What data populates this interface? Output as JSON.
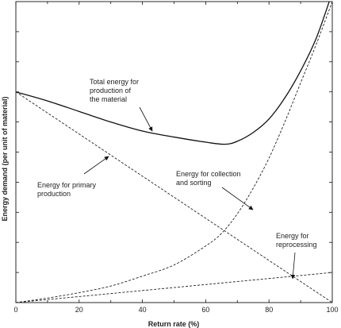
{
  "chart_data": {
    "type": "line",
    "title": "",
    "xlabel": "Return rate (%)",
    "ylabel": "Energy demand (per unit of material)",
    "xlim": [
      0,
      100
    ],
    "ylim": [
      0,
      100
    ],
    "x_ticks": [
      "0",
      "20",
      "40",
      "60",
      "80",
      "100"
    ],
    "y_ticks_labeled": false,
    "grid": false,
    "legend": "none",
    "series": [
      {
        "name": "Total energy for production of the material",
        "style": "solid",
        "x": [
          0,
          10,
          20,
          30,
          40,
          50,
          60,
          66,
          70,
          75,
          80,
          85,
          90,
          95,
          100
        ],
        "y": [
          70,
          67,
          63.5,
          60,
          57,
          55,
          53.3,
          52.6,
          53.6,
          56.5,
          61,
          68,
          77,
          88,
          103
        ]
      },
      {
        "name": "Energy for primary production",
        "style": "dashed",
        "x": [
          0,
          100
        ],
        "y": [
          70,
          0
        ]
      },
      {
        "name": "Energy for collection and sorting",
        "style": "dashed",
        "x": [
          0,
          10,
          20,
          30,
          40,
          50,
          60,
          65,
          70,
          75,
          80,
          85,
          90,
          95,
          100
        ],
        "y": [
          0,
          1.5,
          3.3,
          5.5,
          8.8,
          12.5,
          18.8,
          23,
          29.5,
          38,
          48,
          60,
          73,
          86,
          100
        ]
      },
      {
        "name": "Energy for reprocessing",
        "style": "dashed",
        "x": [
          0,
          100
        ],
        "y": [
          0,
          10
        ]
      }
    ],
    "annotations": [
      {
        "lines": [
          "Total energy for",
          "production of",
          "the material"
        ]
      },
      {
        "lines": [
          "Energy for primary",
          "production"
        ]
      },
      {
        "lines": [
          "Energy for collection",
          "and sorting"
        ]
      },
      {
        "lines": [
          "Energy for",
          "reprocessing"
        ]
      }
    ]
  }
}
